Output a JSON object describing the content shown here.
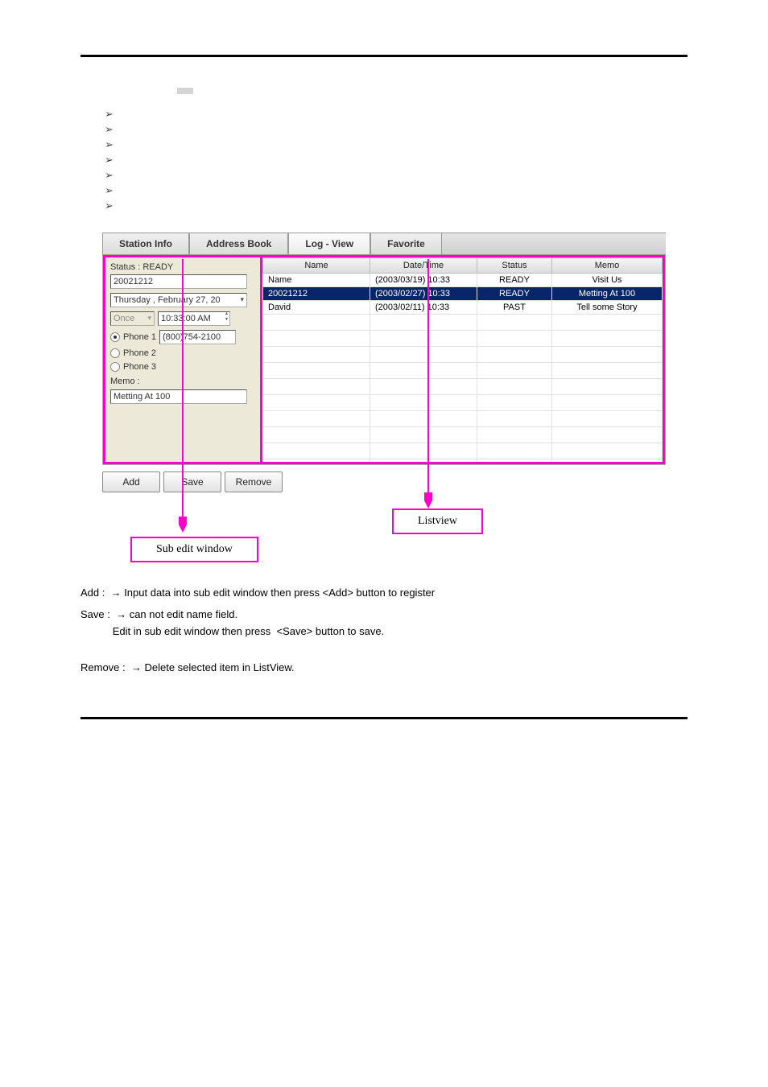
{
  "effect_label": "",
  "bullets": [
    "",
    "",
    "",
    "",
    "",
    "",
    ""
  ],
  "tabs": [
    "Station Info",
    "Address Book",
    "Log - View",
    "Favorite"
  ],
  "left": {
    "status_text": "Status : READY",
    "name_value": "20021212",
    "date_text": "Thursday  ,  February  27, 20",
    "once_text": "Once",
    "time_text": "10:33:00 AM",
    "phone1_label": "Phone 1",
    "phone1_value": "(800)754-2100",
    "phone2_label": "Phone 2",
    "phone3_label": "Phone 3",
    "memo_label": "Memo :",
    "memo_value": "Metting At 100"
  },
  "grid": {
    "columns": [
      "Name",
      "Date/Time",
      "Status",
      "Memo"
    ],
    "rows": [
      {
        "name": "Name",
        "dt": "(2003/03/19) 10:33",
        "status": "READY",
        "memo": "Visit Us",
        "selected": false
      },
      {
        "name": "20021212",
        "dt": "(2003/02/27) 10:33",
        "status": "READY",
        "memo": "Metting At 100",
        "selected": true
      },
      {
        "name": "David",
        "dt": "(2003/02/11) 10:33",
        "status": "PAST",
        "memo": "Tell some Story",
        "selected": false
      }
    ]
  },
  "buttons": {
    "add": "Add",
    "save": "Save",
    "remove": "Remove"
  },
  "callouts": {
    "left": "Sub edit window",
    "right": "Listview"
  },
  "para1": "Add :   Input data into sub edit window then press <Add> button to register",
  "para2_a": "Save :   can not edit name field.",
  "para2_b": "           Edit in sub edit window then press  <Save> button to save.",
  "para3": "Remove :   Delete selected item in ListView.",
  "arrow_glyph": "→",
  "colors": {
    "pink": "#ff00c8"
  }
}
